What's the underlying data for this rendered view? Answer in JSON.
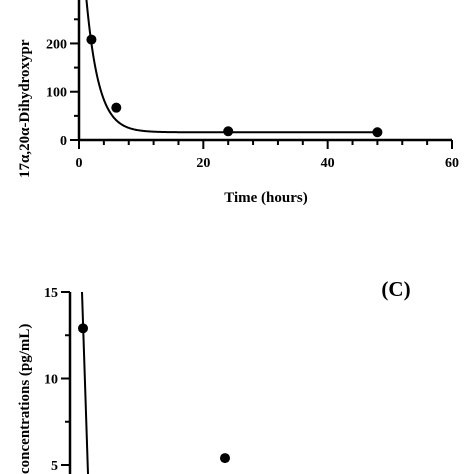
{
  "chart_data": [
    {
      "type": "scatter",
      "panel": "",
      "xlabel": "Time (hours)",
      "ylabel": "17α,20α-Dihydroxypr",
      "xlim": [
        0,
        60
      ],
      "ylim": [
        0,
        290
      ],
      "xticks": [
        0,
        20,
        40,
        60
      ],
      "yticks": [
        0,
        100,
        200
      ],
      "points": [
        {
          "x": 2,
          "y": 208
        },
        {
          "x": 6,
          "y": 67
        },
        {
          "x": 24,
          "y": 18
        },
        {
          "x": 48,
          "y": 16
        }
      ],
      "fit_curve": {
        "type": "exponential decay",
        "plateau": 16,
        "span": 500,
        "k": 0.5,
        "x_range": [
          0,
          48
        ]
      }
    },
    {
      "type": "scatter",
      "panel": "(C)",
      "xlabel": "",
      "ylabel": "concentrations (pg/mL)",
      "xlim": [
        0,
        60
      ],
      "ylim": [
        3.2,
        15
      ],
      "yticks": [
        5,
        10,
        15
      ],
      "points": [
        {
          "x": 0.5,
          "y": 12.9
        },
        {
          "x": 24,
          "y": 5.4
        }
      ]
    }
  ]
}
